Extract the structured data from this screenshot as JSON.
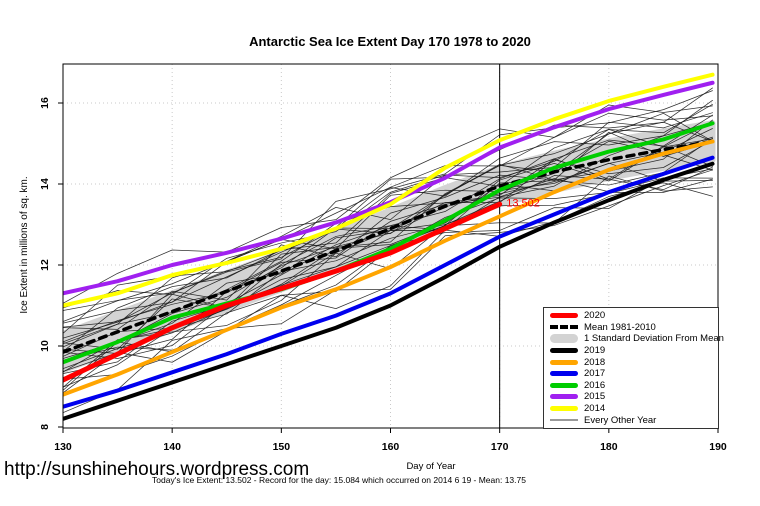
{
  "footer": {
    "url": "http://sunshinehours.wordpress.com",
    "stats": "Today's Ice Extent: 13.502  - Record for the day: 15.084 which occurred on 2014 6 19  - Mean: 13.75"
  },
  "chart_data": {
    "type": "line",
    "title": "Antarctic Sea Ice Extent Day 170 1978 to 2020",
    "xlabel": "Day of Year",
    "ylabel": "Ice Extent in millions of sq. km.",
    "xlim": [
      130,
      190
    ],
    "ylim": [
      7.975,
      16.99
    ],
    "x_ticks": [
      130,
      140,
      150,
      160,
      170,
      180,
      190
    ],
    "y_ticks": [
      8,
      10,
      12,
      14,
      16
    ],
    "grid": "dotted light-gray at every tick",
    "legend_position": "bottom-right inside plot",
    "vline_x": 170,
    "annotation": {
      "text": "13.502",
      "x": 170.6,
      "y": 13.45,
      "color": "#FF0000"
    },
    "days": [
      130,
      135,
      140,
      145,
      150,
      155,
      160,
      165,
      170,
      175,
      180,
      185,
      189.5
    ],
    "series": [
      {
        "name": "2020",
        "color": "#FF0000",
        "width": 5,
        "style": "solid",
        "days": [
          130,
          135,
          140,
          145,
          150,
          155,
          160,
          165,
          170
        ],
        "values": [
          9.16,
          9.8,
          10.45,
          11.0,
          11.42,
          11.85,
          12.3,
          12.9,
          13.502
        ]
      },
      {
        "name": "Mean 1981-2010",
        "color": "#000000",
        "width": 3.5,
        "style": "dashed",
        "values": [
          9.85,
          10.35,
          10.85,
          11.35,
          11.85,
          12.35,
          12.9,
          13.45,
          13.95,
          14.3,
          14.6,
          14.85,
          15.05
        ]
      },
      {
        "name": "2019",
        "color": "#000000",
        "width": 4,
        "style": "solid",
        "values": [
          8.2,
          8.65,
          9.1,
          9.55,
          10.0,
          10.45,
          11.0,
          11.7,
          12.45,
          13.05,
          13.6,
          14.1,
          14.5
        ]
      },
      {
        "name": "2018",
        "color": "#FFA500",
        "width": 4,
        "style": "solid",
        "values": [
          8.8,
          9.3,
          9.85,
          10.4,
          10.95,
          11.4,
          11.95,
          12.6,
          13.2,
          13.8,
          14.35,
          14.75,
          15.05
        ]
      },
      {
        "name": "2017",
        "color": "#0000EE",
        "width": 4,
        "style": "solid",
        "values": [
          8.5,
          8.9,
          9.35,
          9.8,
          10.3,
          10.75,
          11.3,
          12.0,
          12.7,
          13.25,
          13.8,
          14.25,
          14.65
        ]
      },
      {
        "name": "2016",
        "color": "#00CD00",
        "width": 4,
        "style": "solid",
        "values": [
          9.6,
          10.1,
          10.7,
          11.05,
          11.4,
          11.85,
          12.4,
          13.1,
          13.85,
          14.4,
          14.8,
          15.1,
          15.5
        ]
      },
      {
        "name": "2015",
        "color": "#A020F0",
        "width": 4,
        "style": "solid",
        "values": [
          11.3,
          11.6,
          12.0,
          12.3,
          12.65,
          13.05,
          13.55,
          14.15,
          14.9,
          15.4,
          15.85,
          16.2,
          16.5
        ]
      },
      {
        "name": "2014",
        "color": "#FFFF00",
        "width": 4,
        "style": "solid",
        "values": [
          11.0,
          11.3,
          11.75,
          12.05,
          12.4,
          12.9,
          13.5,
          14.4,
          15.08,
          15.6,
          16.05,
          16.4,
          16.7
        ]
      }
    ],
    "band": {
      "label": "1 Standard Deviation From Mean",
      "color": "#D3D3D3",
      "around": "Mean 1981-2010",
      "half_width": 0.45
    },
    "background_years": {
      "label": "Every Other Year",
      "color": "#1b1b1b",
      "count": 30,
      "spread": 1.15,
      "wiggle": 0.5
    },
    "legend": [
      {
        "label": "2020",
        "color": "#FF0000",
        "style": "thick"
      },
      {
        "label": "Mean 1981-2010",
        "color": "#000000",
        "style": "dashed"
      },
      {
        "label": "1 Standard Deviation From Mean",
        "color": "#D3D3D3",
        "style": "band"
      },
      {
        "label": "2019",
        "color": "#000000",
        "style": "thick"
      },
      {
        "label": "2018",
        "color": "#FFA500",
        "style": "thick"
      },
      {
        "label": "2017",
        "color": "#0000EE",
        "style": "thick"
      },
      {
        "label": "2016",
        "color": "#00CD00",
        "style": "thick"
      },
      {
        "label": "2015",
        "color": "#A020F0",
        "style": "thick"
      },
      {
        "label": "2014",
        "color": "#FFFF00",
        "style": "thick"
      },
      {
        "label": "Every Other Year",
        "color": "#999999",
        "style": "thin"
      }
    ]
  }
}
